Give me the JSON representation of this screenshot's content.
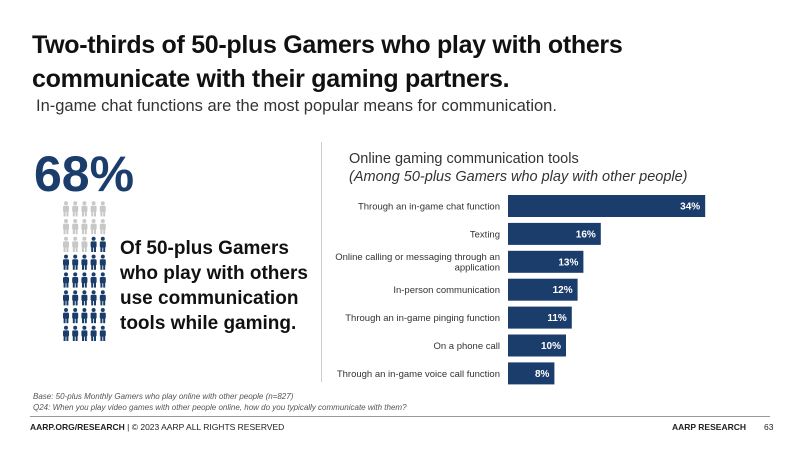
{
  "header": {
    "title": "Two-thirds of 50-plus Gamers who play with others communicate with their gaming partners.",
    "subtitle": "In-game chat functions are the most popular means for communication."
  },
  "stat": {
    "value": "68%",
    "description": "Of 50-plus Gamers who play with others use communication tools while gaming.",
    "icon_name": "person-icon",
    "icons_total": 40,
    "icons_filled": 27,
    "colors": {
      "filled": "#1b3d6b",
      "empty": "#c8c8c8"
    }
  },
  "chart_data": {
    "type": "bar",
    "orientation": "horizontal",
    "title": "Online gaming communication tools",
    "subtitle": "(Among 50-plus Gamers who play with other people)",
    "categories": [
      "Through an in-game chat function",
      "Texting",
      "Online calling or messaging through an application",
      "In-person communication",
      "Through an in-game pinging function",
      "On a phone call",
      "Through an in-game voice call function"
    ],
    "values": [
      34,
      16,
      13,
      12,
      11,
      10,
      8
    ],
    "value_labels": [
      "34%",
      "16%",
      "13%",
      "12%",
      "11%",
      "10%",
      "8%"
    ],
    "bar_color": "#1b3d6b",
    "grid": false
  },
  "footnotes": {
    "base": "Base: 50-plus Monthly Gamers who play online with other people (n=827)",
    "question": "Q24: When you play video games with other people online, how do you typically communicate with them?"
  },
  "footer": {
    "site": "AARP.ORG/RESEARCH",
    "copyright": " | © 2023 AARP ALL RIGHTS RESERVED",
    "brand": "AARP RESEARCH",
    "page": "63"
  }
}
